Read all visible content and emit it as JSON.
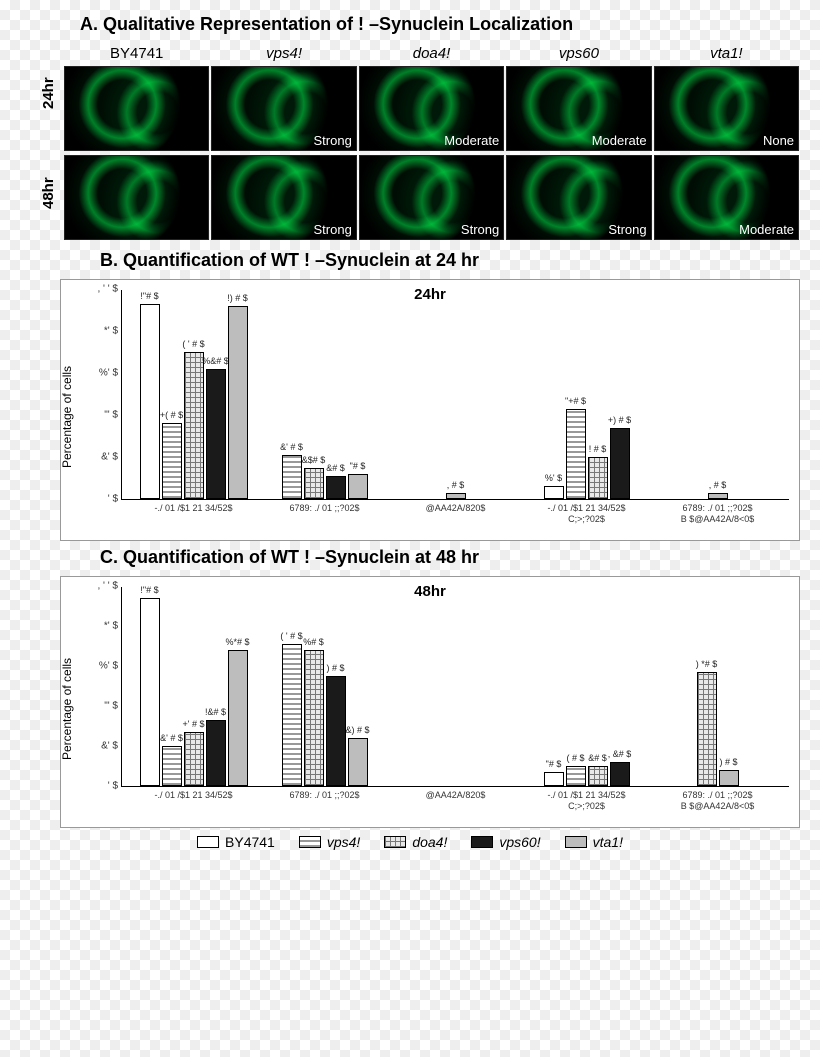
{
  "panelA": {
    "title": "A. Qualitative Representation of  ! –Synuclein Localization",
    "columns": [
      {
        "label": "BY4741",
        "italic": false
      },
      {
        "label": "vps4!",
        "italic": true
      },
      {
        "label": "doa4!",
        "italic": true
      },
      {
        "label": "vps60",
        "italic": true
      },
      {
        "label": "vta1!",
        "italic": true
      }
    ],
    "rows": [
      {
        "label": "24hr",
        "cells": [
          "",
          "Strong",
          "Moderate",
          "Moderate",
          "None"
        ]
      },
      {
        "label": "48hr",
        "cells": [
          "",
          "Strong",
          "Strong",
          "Strong",
          "Moderate"
        ]
      }
    ]
  },
  "panelB": {
    "title": "B. Quantification of WT ! –Synuclein at 24 hr",
    "chart": {
      "title": "24hr",
      "type": "bar",
      "ylabel": "Percentage of cells",
      "ylim": [
        0,
        100
      ],
      "ytick_labels": [
        ", ' ' $",
        "*' $",
        "%' $",
        "\"' $",
        "&' $",
        "' $"
      ],
      "ytick_values": [
        100,
        80,
        60,
        40,
        20,
        0
      ],
      "categories": [
        "-./ 01 /$1 21 34/52$",
        "6789: ./ 01 ;</..7=>;?02$",
        "@AA42A/820$",
        "-./ 01 /$1 21 34/52$\nC;>;?02$",
        "6789: ./ 01 ;</..7=>;?02$\nB $@AA42A/8<0$"
      ],
      "series": [
        {
          "name": "BY4741",
          "fill": "fill-white"
        },
        {
          "name": "vps4!",
          "fill": "fill-hstripe"
        },
        {
          "name": "doa4!",
          "fill": "fill-grid"
        },
        {
          "name": "vps60!",
          "fill": "fill-black"
        },
        {
          "name": "vta1!",
          "fill": "fill-gray"
        }
      ],
      "values": [
        [
          93,
          36,
          70,
          62,
          92
        ],
        [
          0,
          21,
          15,
          11,
          12
        ],
        [
          0,
          0,
          0,
          0,
          3
        ],
        [
          6,
          43,
          20,
          34,
          0
        ],
        [
          0,
          0,
          0,
          0,
          3
        ]
      ],
      "bar_labels": [
        [
          "!\"# $",
          "+( # $",
          "( ' # $",
          "%&# $",
          "!) # $"
        ],
        [
          "",
          "&' # $",
          "&$# $",
          "&# $",
          "\"# $"
        ],
        [
          "",
          "",
          "",
          "",
          ", # $"
        ],
        [
          "%' $",
          "\"+# $",
          "! # $",
          "+) # $",
          ""
        ],
        [
          "",
          "",
          "",
          "",
          ", # $"
        ]
      ]
    }
  },
  "panelC": {
    "title": "C. Quantification of WT ! –Synuclein at 48 hr",
    "chart": {
      "title": "48hr",
      "type": "bar",
      "ylabel": "Percentage of cells",
      "ylim": [
        0,
        100
      ],
      "ytick_labels": [
        ", ' ' $",
        "*' $",
        "%' $",
        "\"' $",
        "&' $",
        "' $"
      ],
      "ytick_values": [
        100,
        80,
        60,
        40,
        20,
        0
      ],
      "categories": [
        "-./ 01 /$1 21 34/52$",
        "6789: ./ 01 ;</..7=>;?02$",
        "@AA42A/820$",
        "-./ 01 /$1 21 34/52$\nC;>;?02$",
        "6789: ./ 01 ;</..7=>;?02$\nB $@AA42A/8<0$"
      ],
      "series": [
        {
          "name": "BY4741",
          "fill": "fill-white"
        },
        {
          "name": "vps4!",
          "fill": "fill-hstripe"
        },
        {
          "name": "doa4!",
          "fill": "fill-grid"
        },
        {
          "name": "vps60!",
          "fill": "fill-black"
        },
        {
          "name": "vta1!",
          "fill": "fill-gray"
        }
      ],
      "values": [
        [
          94,
          20,
          27,
          33,
          68
        ],
        [
          0,
          71,
          68,
          55,
          24
        ],
        [
          0,
          0,
          0,
          0,
          0
        ],
        [
          7,
          10,
          10,
          12,
          0
        ],
        [
          0,
          0,
          57,
          0,
          8
        ]
      ],
      "bar_labels": [
        [
          "!\"# $",
          "&' # $",
          "+' # $",
          "!&# $",
          "%*# $"
        ],
        [
          "",
          "( ' # $",
          "%# $",
          ") # $",
          "&) # $"
        ],
        [
          "",
          "",
          "",
          "",
          ""
        ],
        [
          "\"# $",
          "( # $",
          "&# $",
          ", &# $",
          ""
        ],
        [
          "",
          "",
          ") *# $",
          "",
          ") # $"
        ]
      ]
    }
  },
  "legend": {
    "items": [
      {
        "label": "BY4741",
        "fill": "fill-white",
        "italic": false
      },
      {
        "label": "vps4!",
        "fill": "fill-hstripe",
        "italic": true
      },
      {
        "label": "doa4!",
        "fill": "fill-grid",
        "italic": true
      },
      {
        "label": "vps60!",
        "fill": "fill-black",
        "italic": true
      },
      {
        "label": "vta1!",
        "fill": "fill-gray",
        "italic": true
      }
    ]
  },
  "style": {
    "background_color": "#ffffff",
    "bar_border": "#000000",
    "title_fontsize": 18,
    "axis_fontsize": 12,
    "tick_fontsize": 10,
    "microscopy_green": "#00ff50"
  }
}
